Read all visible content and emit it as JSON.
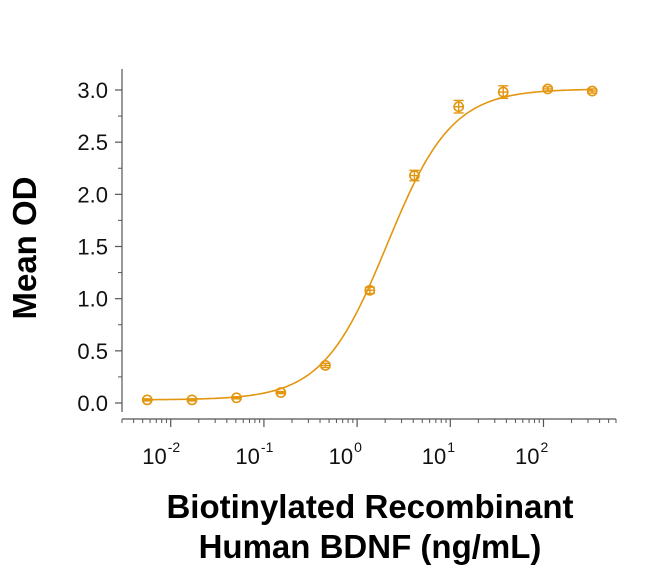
{
  "chart_data": {
    "type": "line",
    "title": "",
    "xlabel_lines": [
      "Biotinylated Recombinant",
      "Human BDNF (ng/mL)"
    ],
    "ylabel": "Mean OD",
    "x_scale": "log",
    "xlim": [
      0.003,
      600
    ],
    "ylim": [
      0,
      3.2
    ],
    "x_ticks": [
      {
        "base": "10",
        "exp": "-2"
      },
      {
        "base": "10",
        "exp": "-1"
      },
      {
        "base": "10",
        "exp": "0"
      },
      {
        "base": "10",
        "exp": "1"
      },
      {
        "base": "10",
        "exp": "2"
      }
    ],
    "y_ticks": [
      "0.0",
      "0.5",
      "1.0",
      "1.5",
      "2.0",
      "2.5",
      "3.0"
    ],
    "grid": false,
    "legend": "none",
    "color": "#E3960F",
    "series": [
      {
        "x": [
          0.0056,
          0.0169,
          0.0508,
          0.152,
          0.457,
          1.37,
          4.12,
          12.3,
          37.0,
          111,
          333
        ],
        "y": [
          0.03,
          0.03,
          0.05,
          0.1,
          0.36,
          1.08,
          2.18,
          2.84,
          2.98,
          3.01,
          2.99
        ],
        "err": [
          0.01,
          0.01,
          0.01,
          0.01,
          0.02,
          0.03,
          0.05,
          0.06,
          0.06,
          0.02,
          0.02
        ]
      }
    ]
  }
}
